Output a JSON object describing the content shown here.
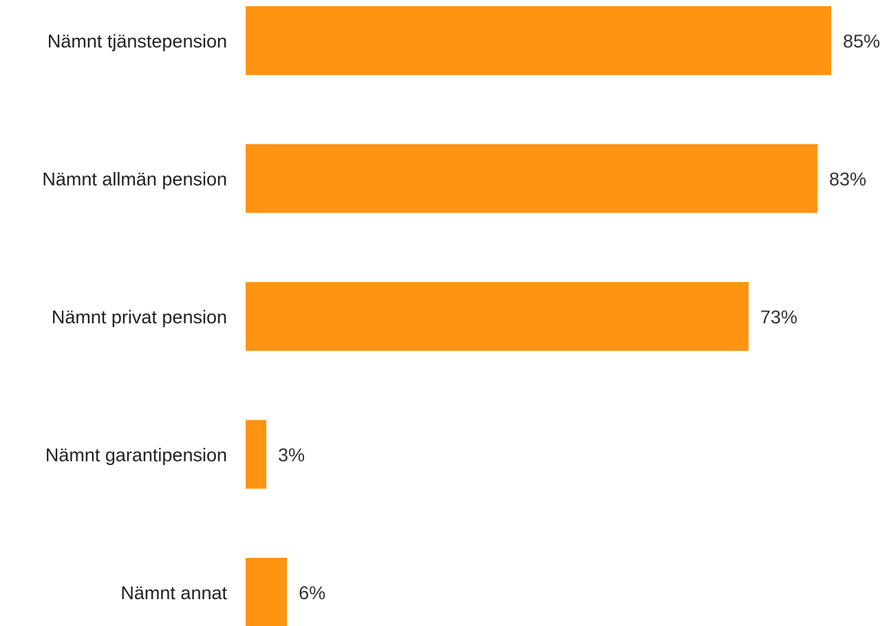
{
  "chart_data": {
    "type": "bar",
    "orientation": "horizontal",
    "categories": [
      "Nämnt tjänstepension",
      "Nämnt allmän pension",
      "Nämnt privat pension",
      "Nämnt garantipension",
      "Nämnt annat"
    ],
    "values": [
      85,
      83,
      73,
      3,
      6
    ],
    "value_labels": [
      "85%",
      "83%",
      "73%",
      "3%",
      "6%"
    ],
    "unit": "%",
    "title": "",
    "xlabel": "",
    "ylabel": "",
    "xlim": [
      0,
      85
    ],
    "grid": false,
    "legend": "none",
    "colors": {
      "bar": "#FF9312",
      "category_text": "#222222",
      "value_text": "#333333"
    }
  }
}
